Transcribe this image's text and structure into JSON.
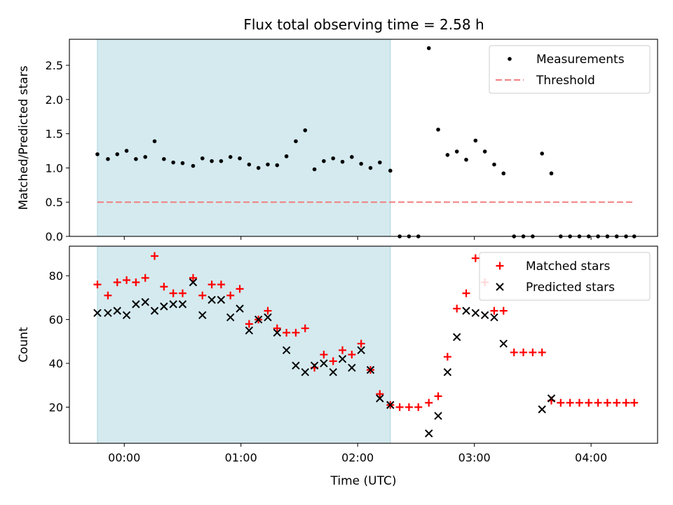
{
  "title": "Flux total observing time = 2.58 h",
  "colors": {
    "shade": "#a9d6e0",
    "measurement": "#000000",
    "threshold": "#f08080",
    "matched": "#ff0000",
    "predicted": "#000000"
  },
  "chart_data": [
    {
      "type": "scatter",
      "panel": "top",
      "ylabel": "Matched/Predicted stars",
      "xlabel": "",
      "xlim": [
        -0.47,
        4.57
      ],
      "ylim": [
        0,
        2.88
      ],
      "yticks": [
        0.0,
        0.5,
        1.0,
        1.5,
        2.0,
        2.5
      ],
      "ytick_labels": [
        "0.0",
        "0.5",
        "1.0",
        "1.5",
        "2.0",
        "2.5"
      ],
      "xticks": [
        0,
        1,
        2,
        3,
        4
      ],
      "shaded_span": [
        -0.23,
        2.28
      ],
      "legend": {
        "position": "upper right",
        "entries": [
          "Measurements",
          "Threshold"
        ]
      },
      "series": [
        {
          "name": "Measurements",
          "marker": "dot",
          "x": [
            -0.23,
            -0.14,
            -0.06,
            0.02,
            0.1,
            0.18,
            0.26,
            0.34,
            0.42,
            0.5,
            0.59,
            0.67,
            0.75,
            0.83,
            0.91,
            0.99,
            1.07,
            1.15,
            1.23,
            1.31,
            1.39,
            1.47,
            1.55,
            1.63,
            1.71,
            1.79,
            1.87,
            1.95,
            2.03,
            2.11,
            2.19,
            2.28,
            2.36,
            2.44,
            2.52,
            2.61,
            2.69,
            2.77,
            2.85,
            2.93,
            3.01,
            3.09,
            3.17,
            3.25,
            3.34,
            3.42,
            3.5,
            3.58,
            3.66,
            3.74,
            3.82,
            3.9,
            3.98,
            4.06,
            4.14,
            4.22,
            4.3,
            4.37
          ],
          "y": [
            1.2,
            1.13,
            1.2,
            1.25,
            1.13,
            1.16,
            1.39,
            1.13,
            1.08,
            1.07,
            1.03,
            1.14,
            1.1,
            1.1,
            1.16,
            1.14,
            1.05,
            1.0,
            1.05,
            1.04,
            1.17,
            1.39,
            1.55,
            0.98,
            1.1,
            1.14,
            1.09,
            1.16,
            1.06,
            1.0,
            1.08,
            0.96,
            0.0,
            0.0,
            0.0,
            2.75,
            1.56,
            1.19,
            1.24,
            1.12,
            1.4,
            1.24,
            1.05,
            0.92,
            0.0,
            0.0,
            0.0,
            1.21,
            0.92,
            0.0,
            0.0,
            0.0,
            0.0,
            0.0,
            0.0,
            0.0,
            0.0,
            0.0
          ]
        },
        {
          "name": "Threshold",
          "marker": "dashed-line",
          "x": [
            -0.23,
            4.37
          ],
          "y": [
            0.5,
            0.5
          ]
        }
      ]
    },
    {
      "type": "scatter",
      "panel": "bottom",
      "ylabel": "Count",
      "xlabel": "Time (UTC)",
      "xlim": [
        -0.47,
        4.57
      ],
      "ylim": [
        3.5,
        93.5
      ],
      "yticks": [
        20,
        40,
        60,
        80
      ],
      "ytick_labels": [
        "20",
        "40",
        "60",
        "80"
      ],
      "xticks": [
        0,
        1,
        2,
        3,
        4
      ],
      "xtick_labels": [
        "00:00",
        "01:00",
        "02:00",
        "03:00",
        "04:00"
      ],
      "shaded_span": [
        -0.23,
        2.28
      ],
      "legend": {
        "position": "upper right",
        "entries": [
          "Matched stars",
          "Predicted stars"
        ]
      },
      "series": [
        {
          "name": "Matched stars",
          "marker": "plus",
          "x": [
            -0.23,
            -0.14,
            -0.06,
            0.02,
            0.1,
            0.18,
            0.26,
            0.34,
            0.42,
            0.5,
            0.59,
            0.67,
            0.75,
            0.83,
            0.91,
            0.99,
            1.07,
            1.15,
            1.23,
            1.31,
            1.39,
            1.47,
            1.55,
            1.63,
            1.71,
            1.79,
            1.87,
            1.95,
            2.03,
            2.11,
            2.19,
            2.28,
            2.36,
            2.44,
            2.52,
            2.61,
            2.69,
            2.77,
            2.85,
            2.93,
            3.01,
            3.09,
            3.17,
            3.25,
            3.34,
            3.42,
            3.5,
            3.58,
            3.66,
            3.74,
            3.82,
            3.9,
            3.98,
            4.06,
            4.14,
            4.22,
            4.3,
            4.37
          ],
          "y": [
            76,
            71,
            77,
            78,
            77,
            79,
            89,
            75,
            72,
            72,
            79,
            71,
            76,
            76,
            71,
            74,
            58,
            60,
            64,
            56,
            54,
            54,
            56,
            38,
            44,
            41,
            46,
            44,
            49,
            37,
            26,
            21,
            20,
            20,
            20,
            22,
            25,
            43,
            65,
            72,
            88,
            77,
            64,
            64,
            45,
            45,
            45,
            45,
            23,
            22,
            22,
            22,
            22,
            22,
            22,
            22,
            22,
            22
          ]
        },
        {
          "name": "Predicted stars",
          "marker": "x",
          "x": [
            -0.23,
            -0.14,
            -0.06,
            0.02,
            0.1,
            0.18,
            0.26,
            0.34,
            0.42,
            0.5,
            0.59,
            0.67,
            0.75,
            0.83,
            0.91,
            0.99,
            1.07,
            1.15,
            1.23,
            1.31,
            1.39,
            1.47,
            1.55,
            1.63,
            1.71,
            1.79,
            1.87,
            1.95,
            2.03,
            2.11,
            2.19,
            2.28,
            2.61,
            2.69,
            2.77,
            2.85,
            2.93,
            3.01,
            3.09,
            3.17,
            3.25,
            3.58,
            3.66
          ],
          "y": [
            63,
            63,
            64,
            62,
            67,
            68,
            64,
            66,
            67,
            67,
            77,
            62,
            69,
            69,
            61,
            65,
            55,
            60,
            61,
            54,
            46,
            39,
            36,
            39,
            40,
            36,
            42,
            38,
            46,
            37,
            24,
            21,
            8,
            16,
            36,
            52,
            64,
            63,
            62,
            61,
            49,
            19,
            24
          ]
        }
      ]
    }
  ]
}
